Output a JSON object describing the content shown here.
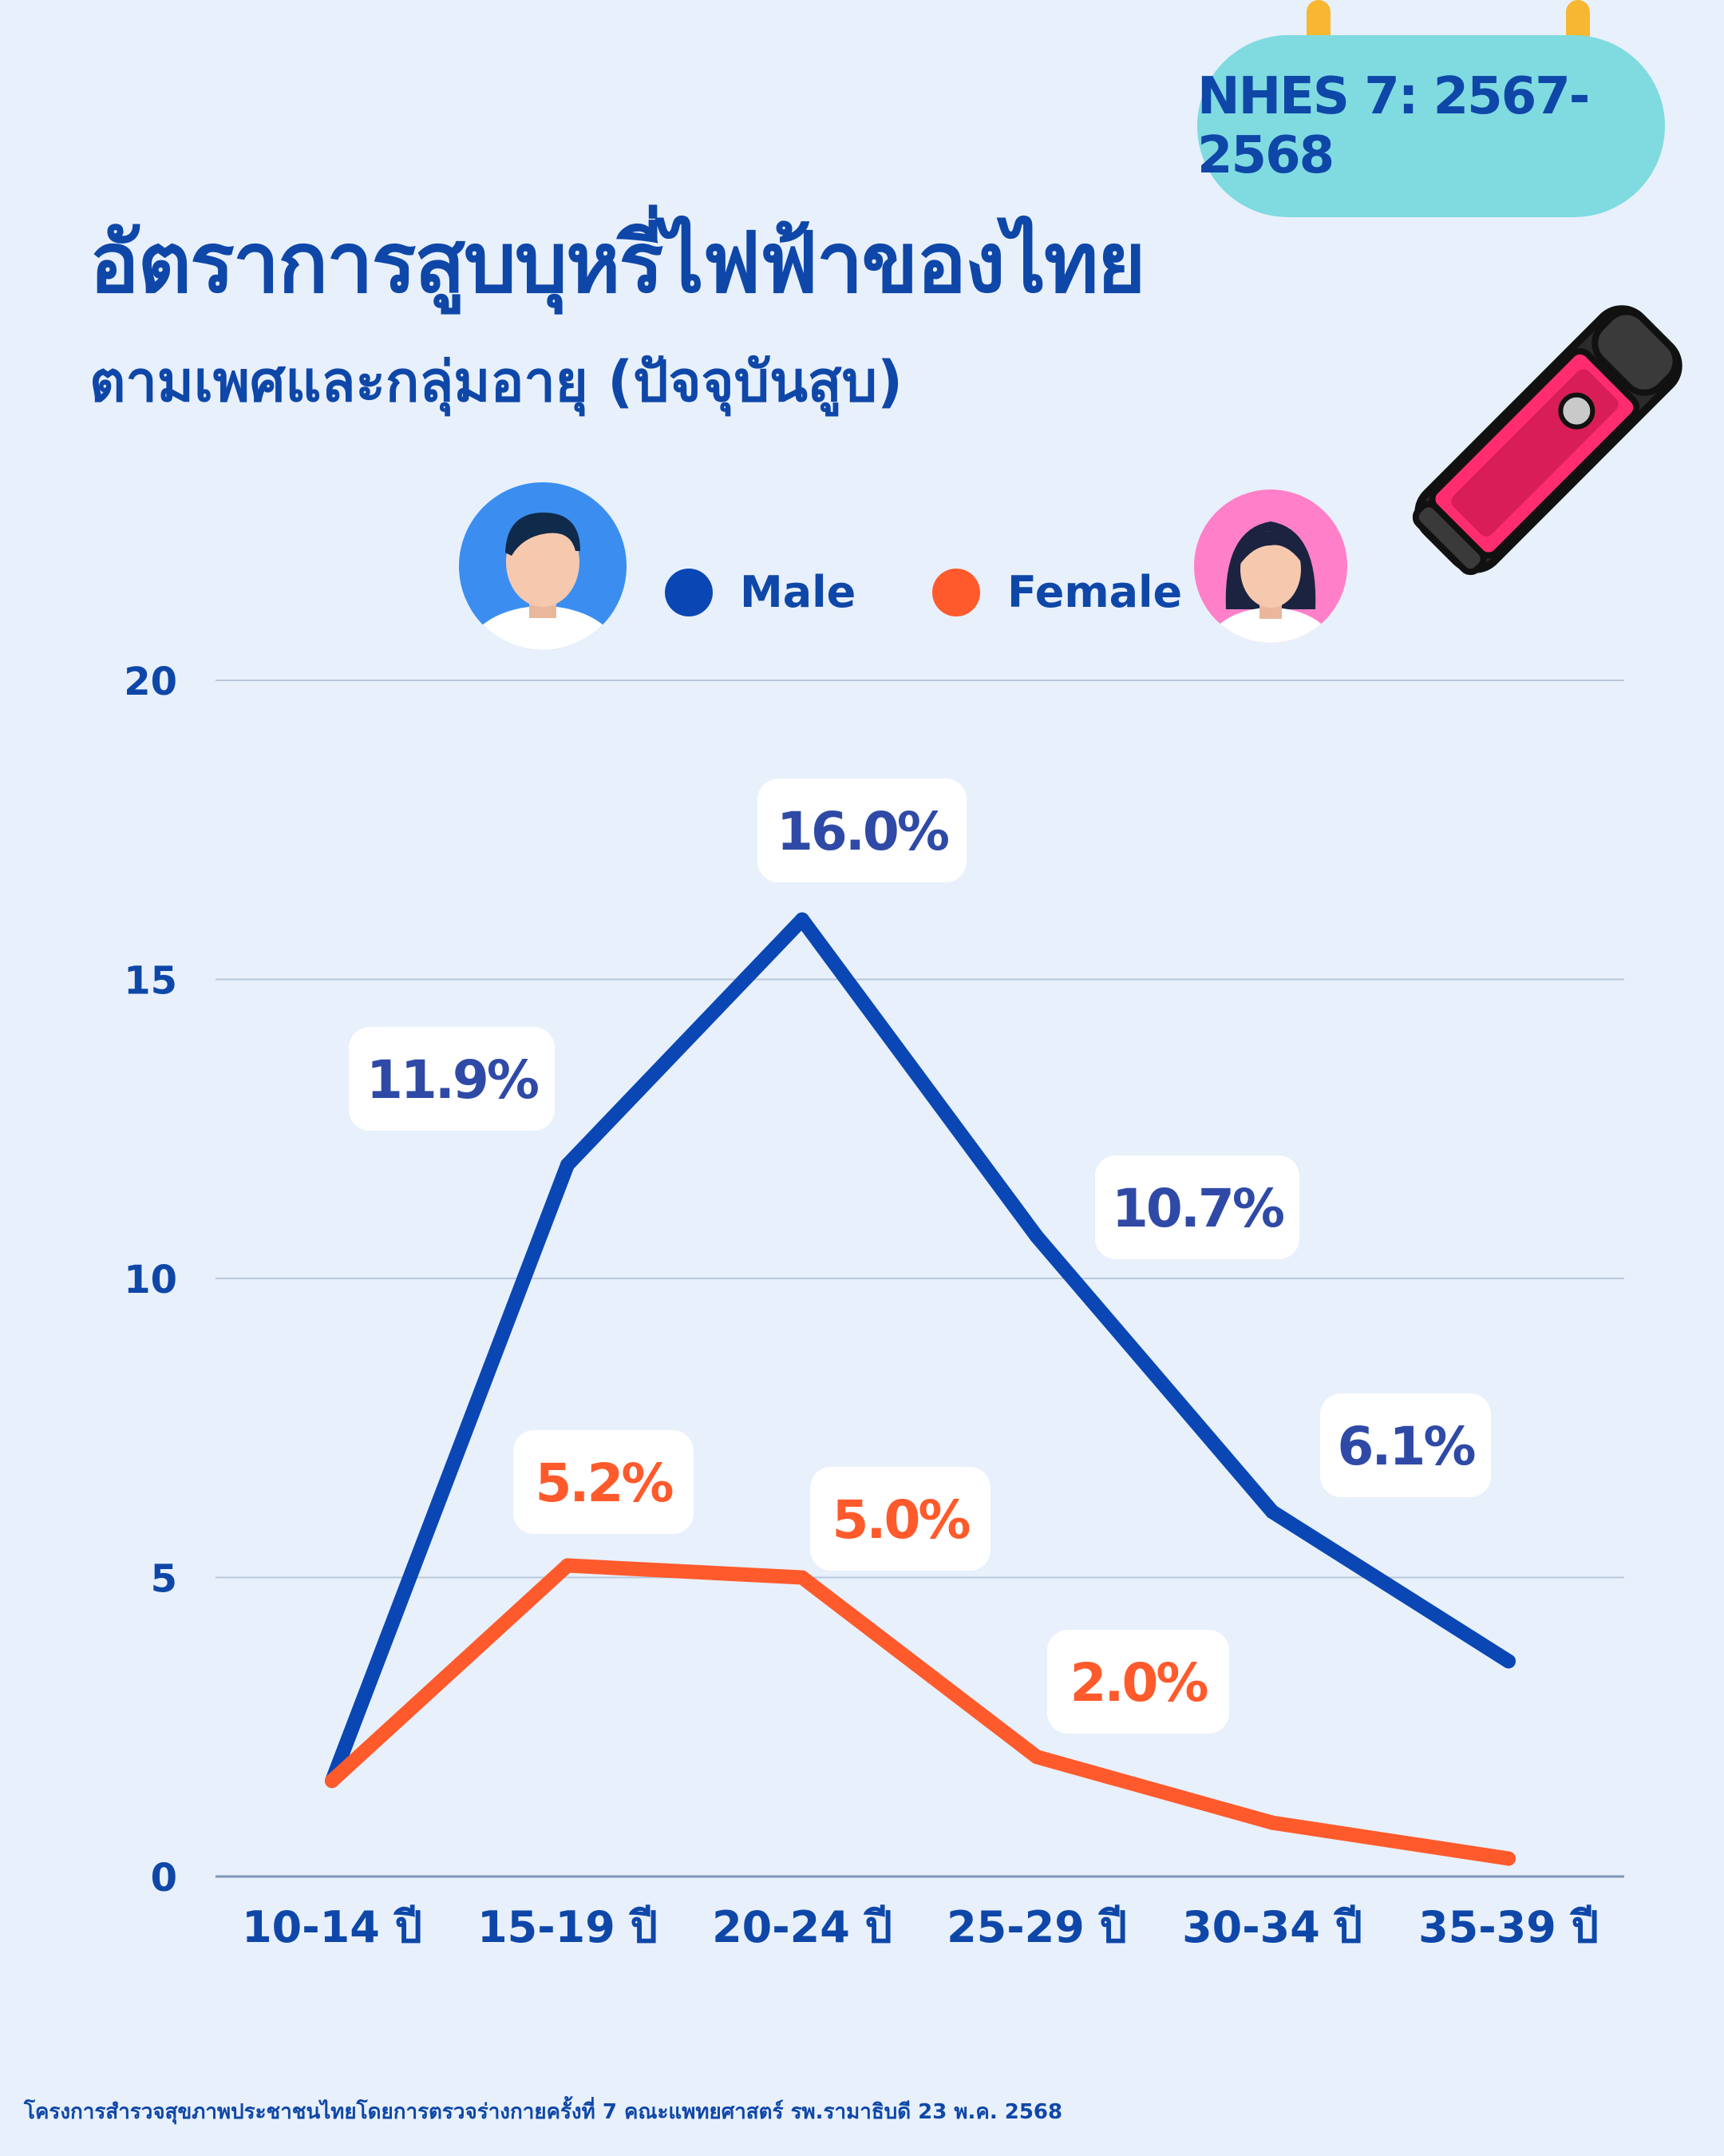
{
  "badge": "NHES 7: 2567-2568",
  "title": "อัตราการสูบบุหรี่ไฟฟ้าของไทย",
  "subtitle": "ตามเพศและกลุ่มอายุ (ปัจจุบันสูบ)",
  "legend": [
    {
      "name": "Male",
      "color": "#0a47b5"
    },
    {
      "name": "Female",
      "color": "#ff5a2c"
    }
  ],
  "footer": "โครงการสำรวจสุขภาพประชาชนไทยโดยการตรวจร่างกายครั้งที่ 7 คณะแพทยศาสตร์ รพ.รามาธิบดี 23 พ.ค. 2568",
  "icons": [
    "calendar-ring-icon",
    "male-avatar-icon",
    "female-avatar-icon",
    "e-cigarette-icon"
  ],
  "chart_data": {
    "type": "line",
    "categories": [
      "10-14 ปี",
      "15-19 ปี",
      "20-24 ปี",
      "25-29 ปี",
      "30-34 ปี",
      "35-39 ปี"
    ],
    "ylim": [
      0,
      20
    ],
    "yticks": [
      0,
      5,
      10,
      15,
      20
    ],
    "grid": true,
    "legend_position": "top",
    "series": [
      {
        "name": "Male",
        "color": "#0a47b5",
        "values": [
          1.6,
          11.9,
          16.0,
          10.7,
          6.1,
          3.6
        ],
        "labels": [
          "",
          "11.9%",
          "16.0%",
          "10.7%",
          "6.1%",
          ""
        ]
      },
      {
        "name": "Female",
        "color": "#ff5a2c",
        "values": [
          1.6,
          5.2,
          5.0,
          2.0,
          0.9,
          0.3
        ],
        "labels": [
          "",
          "5.2%",
          "5.0%",
          "2.0%",
          "",
          ""
        ]
      }
    ]
  }
}
